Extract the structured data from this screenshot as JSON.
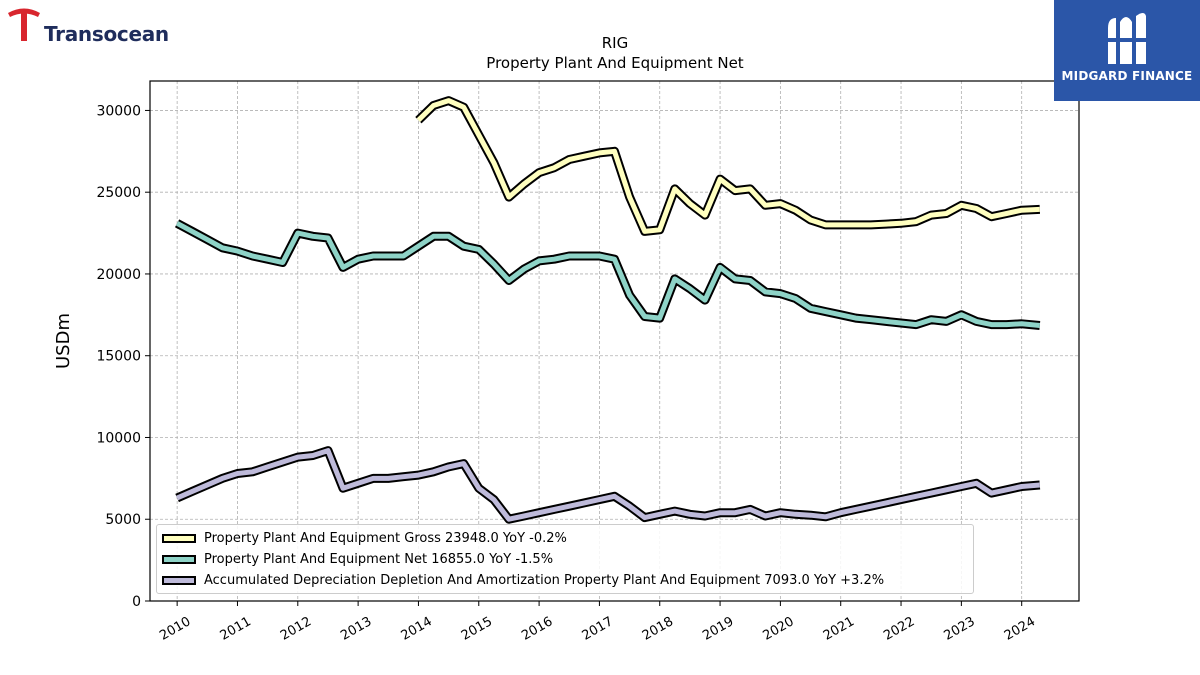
{
  "branding": {
    "left_logo_text": "Transocean",
    "right_logo_text": "MIDGARD FINANCE"
  },
  "colors": {
    "gross": "#ffffbf",
    "net": "#8ed3c7",
    "depreciation": "#bebada",
    "outline": "#000000",
    "right_banner": "#2b56a8",
    "left_logo_red": "#d8262e",
    "left_logo_navy": "#1f2d5c"
  },
  "chart_data": {
    "type": "line",
    "title": "RIG",
    "subtitle": "Property Plant And Equipment Net",
    "xlabel": "",
    "ylabel": "USDm",
    "xlim": [
      2009.55,
      2024.95
    ],
    "ylim": [
      0,
      31800
    ],
    "yticks": [
      0,
      5000,
      10000,
      15000,
      20000,
      25000,
      30000
    ],
    "xticks": [
      2010,
      2011,
      2012,
      2013,
      2014,
      2015,
      2016,
      2017,
      2018,
      2019,
      2020,
      2021,
      2022,
      2023,
      2024
    ],
    "grid": true,
    "legend_position": "lower-left",
    "series": [
      {
        "name": "Property Plant And Equipment Gross",
        "legend_label": "Property Plant And Equipment Gross  23948.0 YoY -0.2%",
        "color": "#ffffbf",
        "points": [
          [
            2014.0,
            29400
          ],
          [
            2014.25,
            30300
          ],
          [
            2014.5,
            30600
          ],
          [
            2014.75,
            30200
          ],
          [
            2015.0,
            28500
          ],
          [
            2015.25,
            26800
          ],
          [
            2015.5,
            24700
          ],
          [
            2015.75,
            25500
          ],
          [
            2016.0,
            26200
          ],
          [
            2016.25,
            26500
          ],
          [
            2016.5,
            27000
          ],
          [
            2016.75,
            27200
          ],
          [
            2017.0,
            27400
          ],
          [
            2017.25,
            27500
          ],
          [
            2017.5,
            24700
          ],
          [
            2017.75,
            22600
          ],
          [
            2018.0,
            22700
          ],
          [
            2018.25,
            25200
          ],
          [
            2018.5,
            24300
          ],
          [
            2018.75,
            23600
          ],
          [
            2019.0,
            25800
          ],
          [
            2019.25,
            25100
          ],
          [
            2019.5,
            25200
          ],
          [
            2019.75,
            24200
          ],
          [
            2020.0,
            24300
          ],
          [
            2020.25,
            23900
          ],
          [
            2020.5,
            23300
          ],
          [
            2020.75,
            23000
          ],
          [
            2021.0,
            23000
          ],
          [
            2021.25,
            23000
          ],
          [
            2021.5,
            23000
          ],
          [
            2021.75,
            23050
          ],
          [
            2022.0,
            23100
          ],
          [
            2022.25,
            23200
          ],
          [
            2022.5,
            23600
          ],
          [
            2022.75,
            23700
          ],
          [
            2023.0,
            24200
          ],
          [
            2023.25,
            24000
          ],
          [
            2023.5,
            23500
          ],
          [
            2023.75,
            23700
          ],
          [
            2024.0,
            23900
          ],
          [
            2024.3,
            23950
          ]
        ]
      },
      {
        "name": "Property Plant And Equipment Net",
        "legend_label": "Property Plant And Equipment Net  16855.0 YoY -1.5%",
        "color": "#8ed3c7",
        "points": [
          [
            2010.0,
            23100
          ],
          [
            2010.25,
            22600
          ],
          [
            2010.5,
            22100
          ],
          [
            2010.75,
            21600
          ],
          [
            2011.0,
            21400
          ],
          [
            2011.25,
            21100
          ],
          [
            2011.5,
            20900
          ],
          [
            2011.75,
            20700
          ],
          [
            2012.0,
            22500
          ],
          [
            2012.25,
            22300
          ],
          [
            2012.5,
            22200
          ],
          [
            2012.75,
            20400
          ],
          [
            2013.0,
            20900
          ],
          [
            2013.25,
            21100
          ],
          [
            2013.5,
            21100
          ],
          [
            2013.75,
            21100
          ],
          [
            2014.0,
            21700
          ],
          [
            2014.25,
            22300
          ],
          [
            2014.5,
            22300
          ],
          [
            2014.75,
            21700
          ],
          [
            2015.0,
            21500
          ],
          [
            2015.25,
            20600
          ],
          [
            2015.5,
            19600
          ],
          [
            2015.75,
            20300
          ],
          [
            2016.0,
            20800
          ],
          [
            2016.25,
            20900
          ],
          [
            2016.5,
            21100
          ],
          [
            2016.75,
            21100
          ],
          [
            2017.0,
            21100
          ],
          [
            2017.25,
            20900
          ],
          [
            2017.5,
            18700
          ],
          [
            2017.75,
            17400
          ],
          [
            2018.0,
            17300
          ],
          [
            2018.25,
            19700
          ],
          [
            2018.5,
            19100
          ],
          [
            2018.75,
            18400
          ],
          [
            2019.0,
            20400
          ],
          [
            2019.25,
            19700
          ],
          [
            2019.5,
            19600
          ],
          [
            2019.75,
            18900
          ],
          [
            2020.0,
            18800
          ],
          [
            2020.25,
            18500
          ],
          [
            2020.5,
            17900
          ],
          [
            2020.75,
            17700
          ],
          [
            2021.0,
            17500
          ],
          [
            2021.25,
            17300
          ],
          [
            2021.5,
            17200
          ],
          [
            2021.75,
            17100
          ],
          [
            2022.0,
            17000
          ],
          [
            2022.25,
            16900
          ],
          [
            2022.5,
            17200
          ],
          [
            2022.75,
            17100
          ],
          [
            2023.0,
            17500
          ],
          [
            2023.25,
            17100
          ],
          [
            2023.5,
            16900
          ],
          [
            2023.75,
            16900
          ],
          [
            2024.0,
            16950
          ],
          [
            2024.3,
            16850
          ]
        ]
      },
      {
        "name": "Accumulated Depreciation Depletion And Amortization Property Plant And Equipment",
        "legend_label": "Accumulated Depreciation Depletion And Amortization Property Plant And Equipment  7093.0 YoY +3.2%",
        "color": "#bebada",
        "points": [
          [
            2010.0,
            6300
          ],
          [
            2010.25,
            6700
          ],
          [
            2010.5,
            7100
          ],
          [
            2010.75,
            7500
          ],
          [
            2011.0,
            7800
          ],
          [
            2011.25,
            7900
          ],
          [
            2011.5,
            8200
          ],
          [
            2011.75,
            8500
          ],
          [
            2012.0,
            8800
          ],
          [
            2012.25,
            8900
          ],
          [
            2012.5,
            9200
          ],
          [
            2012.75,
            6900
          ],
          [
            2013.0,
            7200
          ],
          [
            2013.25,
            7500
          ],
          [
            2013.5,
            7500
          ],
          [
            2013.75,
            7600
          ],
          [
            2014.0,
            7700
          ],
          [
            2014.25,
            7900
          ],
          [
            2014.5,
            8200
          ],
          [
            2014.75,
            8400
          ],
          [
            2015.0,
            6900
          ],
          [
            2015.25,
            6200
          ],
          [
            2015.5,
            5000
          ],
          [
            2015.75,
            5200
          ],
          [
            2016.0,
            5400
          ],
          [
            2016.25,
            5600
          ],
          [
            2016.5,
            5800
          ],
          [
            2016.75,
            6000
          ],
          [
            2017.0,
            6200
          ],
          [
            2017.25,
            6400
          ],
          [
            2017.5,
            5800
          ],
          [
            2017.75,
            5100
          ],
          [
            2018.0,
            5300
          ],
          [
            2018.25,
            5500
          ],
          [
            2018.5,
            5300
          ],
          [
            2018.75,
            5200
          ],
          [
            2019.0,
            5400
          ],
          [
            2019.25,
            5400
          ],
          [
            2019.5,
            5600
          ],
          [
            2019.75,
            5200
          ],
          [
            2020.0,
            5400
          ],
          [
            2020.25,
            5300
          ],
          [
            2020.5,
            5250
          ],
          [
            2020.75,
            5150
          ],
          [
            2021.0,
            5400
          ],
          [
            2021.25,
            5600
          ],
          [
            2021.5,
            5800
          ],
          [
            2021.75,
            6000
          ],
          [
            2022.0,
            6200
          ],
          [
            2022.25,
            6400
          ],
          [
            2022.5,
            6600
          ],
          [
            2022.75,
            6800
          ],
          [
            2023.0,
            7000
          ],
          [
            2023.25,
            7200
          ],
          [
            2023.5,
            6600
          ],
          [
            2023.75,
            6800
          ],
          [
            2024.0,
            7000
          ],
          [
            2024.3,
            7093
          ]
        ]
      }
    ]
  }
}
